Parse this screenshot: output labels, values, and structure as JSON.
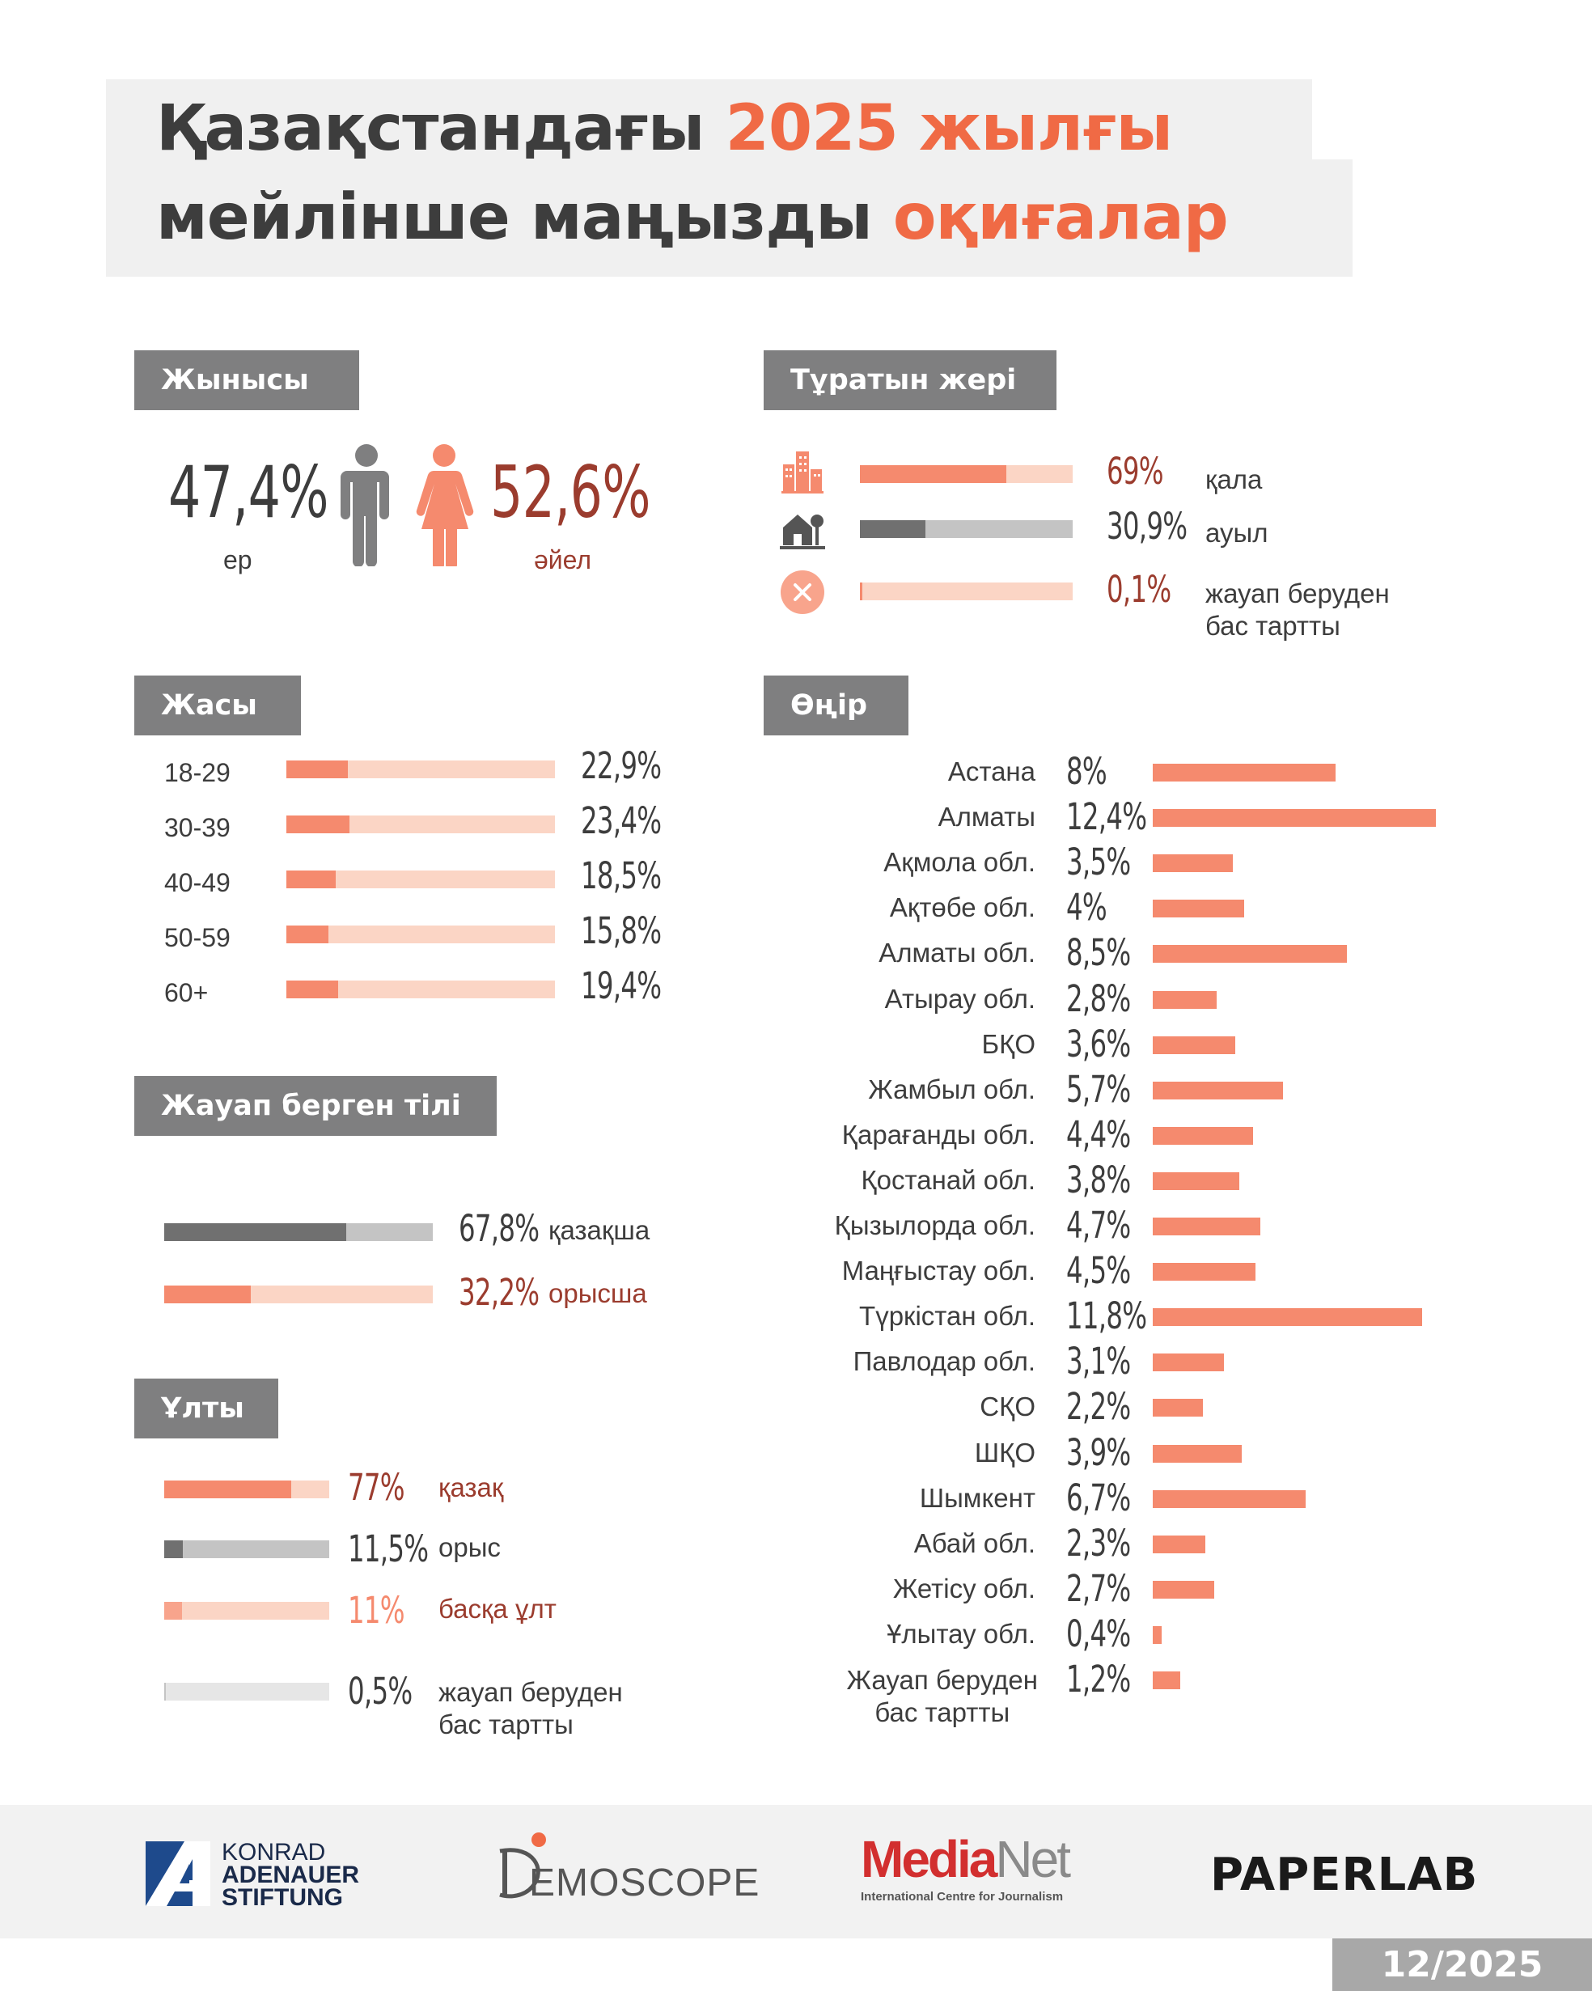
{
  "title": {
    "line1_a": "Қазақстандағы ",
    "line1_b": "2025 жылғы",
    "line2_a": "мейлінше маңызды ",
    "line2_b": "оқиғалар"
  },
  "colors": {
    "accent": "#f06a45",
    "bar": "#f58a6e",
    "bar_light": "#fbd5c5",
    "gray_dark": "#707070",
    "gray_light": "#c4c4c4",
    "dark_red": "#9b3c2e"
  },
  "gender": {
    "label": "Жынысы",
    "male_pct": "47,4%",
    "male_label": "ер",
    "female_pct": "52,6%",
    "female_label": "әйел"
  },
  "residence": {
    "label": "Тұратын жері",
    "items": [
      {
        "pct": "69%",
        "value": 69,
        "label": "қала",
        "icon": "city-icon"
      },
      {
        "pct": "30,9%",
        "value": 30.9,
        "label": "ауыл",
        "icon": "village-icon"
      },
      {
        "pct": "0,1%",
        "value": 0.1,
        "label_1": "жауап беруден",
        "label_2": "бас тартты",
        "icon": "refuse-icon"
      }
    ]
  },
  "age": {
    "label": "Жасы",
    "items": [
      {
        "group": "18-29",
        "pct": "22,9%",
        "value": 22.9
      },
      {
        "group": "30-39",
        "pct": "23,4%",
        "value": 23.4
      },
      {
        "group": "40-49",
        "pct": "18,5%",
        "value": 18.5
      },
      {
        "group": "50-59",
        "pct": "15,8%",
        "value": 15.8
      },
      {
        "group": "60+",
        "pct": "19,4%",
        "value": 19.4
      }
    ]
  },
  "language": {
    "label": "Жауап берген тілі",
    "items": [
      {
        "pct": "67,8%",
        "value": 67.8,
        "label": "қазақша"
      },
      {
        "pct": "32,2%",
        "value": 32.2,
        "label": "орысша"
      }
    ]
  },
  "ethnicity": {
    "label": "Ұлты",
    "items": [
      {
        "pct": "77%",
        "value": 77,
        "label": "қазақ"
      },
      {
        "pct": "11,5%",
        "value": 11.5,
        "label": "орыс"
      },
      {
        "pct": "11%",
        "value": 11,
        "label": "басқа ұлт"
      },
      {
        "pct": "0,5%",
        "value": 0.5,
        "label_1": "жауап беруден",
        "label_2": "бас тартты"
      }
    ]
  },
  "region": {
    "label": "Өңір"
  },
  "chart_data": {
    "type": "bar",
    "title": "Өңір",
    "orientation": "horizontal",
    "xlim": [
      0,
      12.4
    ],
    "categories": [
      "Астана",
      "Алматы",
      "Ақмола обл.",
      "Ақтөбе обл.",
      "Алматы обл.",
      "Атырау обл.",
      "БҚО",
      "Жамбыл обл.",
      "Қарағанды обл.",
      "Қостанай обл.",
      "Қызылорда обл.",
      "Маңғыстау обл.",
      "Түркістан обл.",
      "Павлодар обл.",
      "СҚО",
      "ШҚО",
      "Шымкент",
      "Абай обл.",
      "Жетісу обл.",
      "Ұлытау обл.",
      "Жауап беруден бас тартты"
    ],
    "values": [
      8,
      12.4,
      3.5,
      4,
      8.5,
      2.8,
      3.6,
      5.7,
      4.4,
      3.8,
      4.7,
      4.5,
      11.8,
      3.1,
      2.2,
      3.9,
      6.7,
      2.3,
      2.7,
      0.4,
      1.2
    ],
    "value_labels": [
      "8%",
      "12,4%",
      "3,5%",
      "4%",
      "8,5%",
      "2,8%",
      "3,6%",
      "5,7%",
      "4,4%",
      "3,8%",
      "4,7%",
      "4,5%",
      "11,8%",
      "3,1%",
      "2,2%",
      "3,9%",
      "6,7%",
      "2,3%",
      "2,7%",
      "0,4%",
      "1,2%"
    ],
    "last_label_lines": [
      "Жауап беруден",
      "бас тартты"
    ]
  },
  "footer": {
    "kas_line1": "KONRAD",
    "kas_line2": "ADENAUER",
    "kas_line3": "STIFTUNG",
    "demoscope_d": "D",
    "demoscope_rest": "EMOSCOPE",
    "medianet_a": "Media",
    "medianet_b": "Net",
    "medianet_sub": "International Centre for Journalism",
    "paperlab": "PAPERLAB",
    "date": "12/2025"
  }
}
